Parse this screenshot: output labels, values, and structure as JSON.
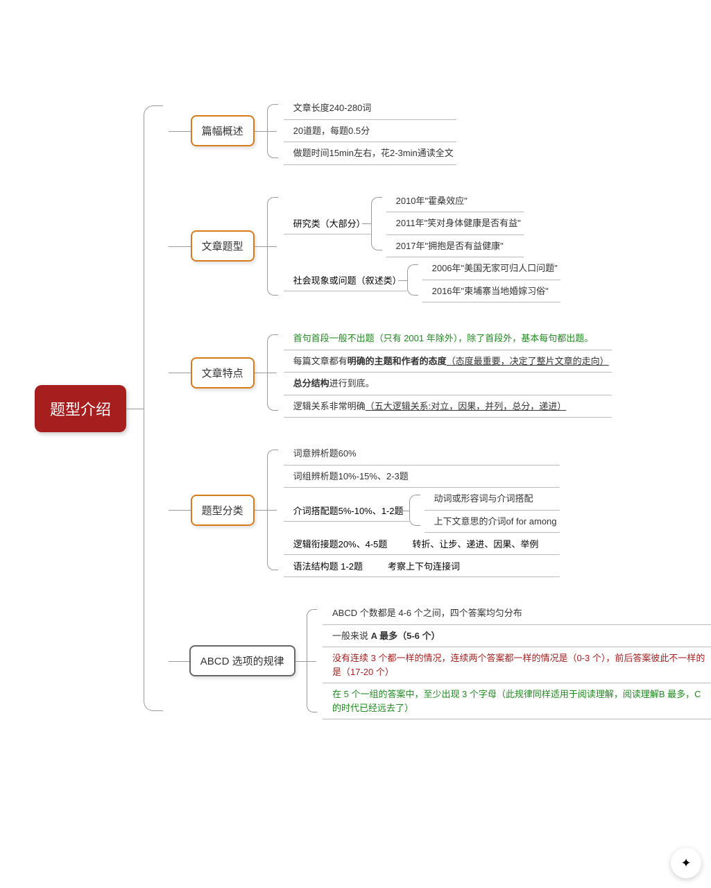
{
  "root": {
    "label": "题型介绍",
    "bg": "#a71e1e",
    "color": "#ffffff"
  },
  "branches": [
    {
      "id": "b1",
      "label": "篇幅概述",
      "border": "#d97a1a",
      "items": [
        {
          "t": "文章长度240-280词"
        },
        {
          "t": "20道题，每题0.5分"
        },
        {
          "t": "做题时间15min左右，花2-3min通读全文"
        }
      ]
    },
    {
      "id": "b2",
      "label": "文章题型",
      "border": "#d97a1a",
      "subs": [
        {
          "label": "研究类（大部分）",
          "items": [
            {
              "t": "2010年\"霍桑效应\""
            },
            {
              "t": "2011年\"笑对身体健康是否有益\""
            },
            {
              "t": "2017年\"拥抱是否有益健康\""
            }
          ]
        },
        {
          "label": "社会现象或问题（叙述类）",
          "items": [
            {
              "t": "2006年\"美国无家可归人口问题\""
            },
            {
              "t": "2016年\"柬埔寨当地婚嫁习俗\""
            }
          ]
        }
      ]
    },
    {
      "id": "b3",
      "label": "文章特点",
      "border": "#d97a1a",
      "items": [
        {
          "html": "<span class='green'>首句首段一般不出题（只有 2001 年除外），除了首段外，基本每句都出题。</span>"
        },
        {
          "html": "每篇文章都有<span class='bold'>明确的主题和作者的态度</span><span class='ul'>（态度最重要，决定了整片文章的走向）</span>"
        },
        {
          "html": "<span class='bold'>总分结构</span>进行到底。"
        },
        {
          "html": "逻辑关系非常明确<span class='ul'>（五大逻辑关系:对立，因果，并列，总分，递进）</span>"
        }
      ]
    },
    {
      "id": "b4",
      "label": "题型分类",
      "border": "#d97a1a",
      "mixed": [
        {
          "type": "item",
          "t": "词意辨析题60%"
        },
        {
          "type": "item",
          "t": "词组辨析题10%-15%、2-3题"
        },
        {
          "type": "sub",
          "label": "介词搭配题5%-10%、1-2题",
          "items": [
            {
              "t": "动词或形容词与介词搭配"
            },
            {
              "t": "上下文意思的介词of for among"
            }
          ]
        },
        {
          "type": "inline",
          "label": "逻辑衔接题20%、4-5题",
          "extra": "转折、让步、递进、因果、举例"
        },
        {
          "type": "inline",
          "label": "语法结构题 1-2题",
          "extra": "考察上下句连接词"
        }
      ]
    },
    {
      "id": "b5",
      "label": "ABCD 选项的规律",
      "border": "#666666",
      "items": [
        {
          "t": "ABCD 个数都是 4-6 个之间，四个答案均匀分布"
        },
        {
          "html": "一般来说 <span class='bold'>A 最多（5-6 个）</span>"
        },
        {
          "html": "<span class='red'>没有连续 3 个都一样的情况，连续两个答案都一样的情况是（0-3 个），前后答案彼此不一样的是（17-20 个）</span>"
        },
        {
          "html": "<span class='green'>在 5 个一组的答案中，至少出现 3 个字母（此规律同样适用于阅读理解，阅读理解B 最多，C 的时代已经远去了）</span>"
        }
      ]
    }
  ],
  "fab_icon": "✦"
}
